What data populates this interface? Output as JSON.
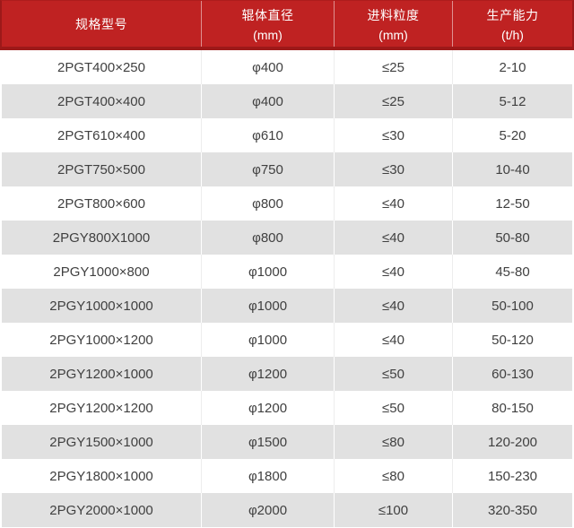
{
  "table": {
    "columns": [
      {
        "label": "规格型号",
        "sub": ""
      },
      {
        "label": "辊体直径",
        "sub": "(mm)"
      },
      {
        "label": "进料粒度",
        "sub": "(mm)"
      },
      {
        "label": "生产能力",
        "sub": "(t/h)"
      }
    ],
    "rows": [
      [
        "2PGT400×250",
        "φ400",
        "≤25",
        "2-10"
      ],
      [
        "2PGT400×400",
        "φ400",
        "≤25",
        "5-12"
      ],
      [
        "2PGT610×400",
        "φ610",
        "≤30",
        "5-20"
      ],
      [
        "2PGT750×500",
        "φ750",
        "≤30",
        "10-40"
      ],
      [
        "2PGT800×600",
        "φ800",
        "≤40",
        "12-50"
      ],
      [
        "2PGY800X1000",
        "φ800",
        "≤40",
        "50-80"
      ],
      [
        "2PGY1000×800",
        "φ1000",
        "≤40",
        "45-80"
      ],
      [
        "2PGY1000×1000",
        "φ1000",
        "≤40",
        "50-100"
      ],
      [
        "2PGY1000×1200",
        "φ1000",
        "≤40",
        "50-120"
      ],
      [
        "2PGY1200×1000",
        "φ1200",
        "≤50",
        "60-130"
      ],
      [
        "2PGY1200×1200",
        "φ1200",
        "≤50",
        "80-150"
      ],
      [
        "2PGY1500×1000",
        "φ1500",
        "≤80",
        "120-200"
      ],
      [
        "2PGY1800×1000",
        "φ1800",
        "≤80",
        "150-230"
      ],
      [
        "2PGY2000×1000",
        "φ2000",
        "≤100",
        "320-350"
      ]
    ],
    "cell_names": [
      "spec-model-cell",
      "roller-diameter-cell",
      "feed-size-cell",
      "capacity-cell"
    ]
  },
  "colors": {
    "header_bg": "#bf2222",
    "header_border": "#9d1919",
    "header_border_top": "#ad1d1d",
    "header_divider": "rgba(255,255,255,0.5)",
    "header_text": "#ffffff",
    "row_bg": "#ffffff",
    "row_alt": "#e1e1e1",
    "text": "#404040",
    "divider": "#ededed"
  }
}
